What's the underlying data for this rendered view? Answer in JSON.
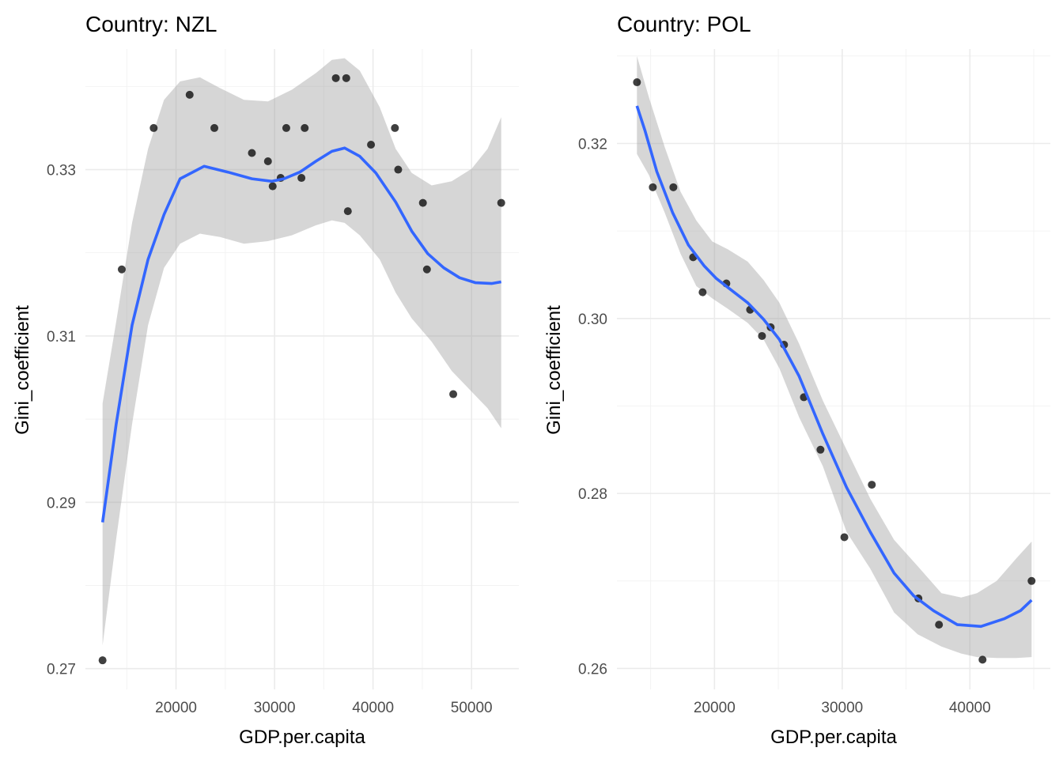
{
  "chart_data": [
    {
      "type": "scatter",
      "title": "Country: NZL",
      "xlabel": "GDP.per.capita",
      "ylabel": "Gini_coefficient",
      "xlim": [
        10800,
        54800
      ],
      "ylim": [
        0.2675,
        0.3445
      ],
      "x_ticks": [
        20000,
        30000,
        40000,
        50000
      ],
      "x_tick_labels": [
        "20000",
        "30000",
        "40000",
        "50000"
      ],
      "y_ticks": [
        0.27,
        0.29,
        0.31,
        0.33
      ],
      "y_tick_labels": [
        "0.27",
        "0.29",
        "0.31",
        "0.33"
      ],
      "grid": true,
      "points": [
        {
          "x": 12540,
          "y": 0.271
        },
        {
          "x": 14490,
          "y": 0.318
        },
        {
          "x": 17730,
          "y": 0.335
        },
        {
          "x": 21380,
          "y": 0.339
        },
        {
          "x": 23890,
          "y": 0.335
        },
        {
          "x": 27700,
          "y": 0.332
        },
        {
          "x": 29330,
          "y": 0.331
        },
        {
          "x": 29810,
          "y": 0.328
        },
        {
          "x": 30620,
          "y": 0.329
        },
        {
          "x": 31190,
          "y": 0.335
        },
        {
          "x": 32730,
          "y": 0.329
        },
        {
          "x": 33060,
          "y": 0.335
        },
        {
          "x": 36220,
          "y": 0.341
        },
        {
          "x": 37280,
          "y": 0.341
        },
        {
          "x": 37440,
          "y": 0.325
        },
        {
          "x": 39790,
          "y": 0.333
        },
        {
          "x": 42220,
          "y": 0.335
        },
        {
          "x": 42550,
          "y": 0.33
        },
        {
          "x": 45060,
          "y": 0.326
        },
        {
          "x": 45470,
          "y": 0.318
        },
        {
          "x": 48140,
          "y": 0.303
        },
        {
          "x": 53010,
          "y": 0.326
        }
      ],
      "smooth": {
        "x": [
          12540,
          13920,
          15540,
          17160,
          18780,
          20410,
          22840,
          25270,
          27700,
          29730,
          30950,
          32570,
          34190,
          35820,
          37110,
          38650,
          40280,
          42300,
          43930,
          45550,
          47170,
          48790,
          50410,
          52030,
          53010
        ],
        "y": [
          0.2876,
          0.2994,
          0.3113,
          0.3192,
          0.3246,
          0.3289,
          0.3304,
          0.3297,
          0.3289,
          0.3286,
          0.3289,
          0.3297,
          0.331,
          0.3322,
          0.3326,
          0.3316,
          0.3296,
          0.3261,
          0.3226,
          0.3199,
          0.3182,
          0.317,
          0.3164,
          0.3163,
          0.3165
        ]
      },
      "ribbon": {
        "x": [
          12540,
          13920,
          15540,
          17160,
          18780,
          20410,
          22430,
          24460,
          26890,
          29330,
          31760,
          34190,
          35820,
          37110,
          38650,
          40680,
          42300,
          43930,
          45950,
          47980,
          50010,
          51630,
          53010
        ],
        "upper": [
          0.3019,
          0.3117,
          0.3236,
          0.3325,
          0.3384,
          0.3406,
          0.3411,
          0.3398,
          0.3384,
          0.3382,
          0.3396,
          0.3416,
          0.3432,
          0.3434,
          0.3419,
          0.3375,
          0.3325,
          0.3296,
          0.3281,
          0.3286,
          0.3301,
          0.3325,
          0.3363
        ],
        "lower": [
          0.2728,
          0.2856,
          0.2994,
          0.3113,
          0.3182,
          0.3211,
          0.3223,
          0.3219,
          0.3211,
          0.3214,
          0.3221,
          0.3233,
          0.3239,
          0.3236,
          0.3221,
          0.3192,
          0.3152,
          0.3121,
          0.3093,
          0.3058,
          0.3033,
          0.3013,
          0.2989
        ]
      }
    },
    {
      "type": "scatter",
      "title": "Country: POL",
      "xlabel": "GDP.per.capita",
      "ylabel": "Gini_coefficient",
      "xlim": [
        12360,
        46300
      ],
      "ylim": [
        0.2576,
        0.3308
      ],
      "x_ticks": [
        20000,
        30000,
        40000
      ],
      "x_tick_labels": [
        "20000",
        "30000",
        "40000"
      ],
      "y_ticks": [
        0.26,
        0.28,
        0.3,
        0.32
      ],
      "y_tick_labels": [
        "0.26",
        "0.28",
        "0.30",
        "0.32"
      ],
      "grid": true,
      "points": [
        {
          "x": 13930,
          "y": 0.327
        },
        {
          "x": 15170,
          "y": 0.315
        },
        {
          "x": 16780,
          "y": 0.315
        },
        {
          "x": 18330,
          "y": 0.307
        },
        {
          "x": 19070,
          "y": 0.303
        },
        {
          "x": 20930,
          "y": 0.304
        },
        {
          "x": 22790,
          "y": 0.301
        },
        {
          "x": 23720,
          "y": 0.298
        },
        {
          "x": 24400,
          "y": 0.299
        },
        {
          "x": 25450,
          "y": 0.297
        },
        {
          "x": 27000,
          "y": 0.291
        },
        {
          "x": 28300,
          "y": 0.285
        },
        {
          "x": 30170,
          "y": 0.275
        },
        {
          "x": 32320,
          "y": 0.281
        },
        {
          "x": 35970,
          "y": 0.268
        },
        {
          "x": 37580,
          "y": 0.265
        },
        {
          "x": 40990,
          "y": 0.261
        },
        {
          "x": 44830,
          "y": 0.27
        }
      ],
      "smooth": {
        "x": [
          13930,
          14550,
          15480,
          16720,
          17960,
          19200,
          20120,
          21360,
          22600,
          23840,
          25080,
          26630,
          28490,
          30340,
          32200,
          34060,
          35600,
          37150,
          39010,
          40870,
          42720,
          43960,
          44830
        ],
        "y": [
          0.3243,
          0.3215,
          0.3168,
          0.3121,
          0.3084,
          0.306,
          0.3046,
          0.3032,
          0.3018,
          0.2999,
          0.2976,
          0.2934,
          0.2868,
          0.2807,
          0.2756,
          0.2709,
          0.2683,
          0.2666,
          0.265,
          0.2648,
          0.2657,
          0.2666,
          0.2678
        ]
      },
      "ribbon": {
        "x": [
          13930,
          14860,
          16100,
          17340,
          18580,
          19820,
          21050,
          22600,
          23840,
          25080,
          26630,
          28490,
          30340,
          32200,
          34060,
          35910,
          37770,
          39320,
          40560,
          42100,
          43650,
          44830
        ],
        "upper": [
          0.33,
          0.3253,
          0.3196,
          0.3145,
          0.3112,
          0.3088,
          0.3079,
          0.3065,
          0.3044,
          0.3018,
          0.2971,
          0.2906,
          0.285,
          0.2794,
          0.2747,
          0.2717,
          0.2686,
          0.2681,
          0.2686,
          0.27,
          0.2726,
          0.2745
        ],
        "lower": [
          0.3188,
          0.3164,
          0.3121,
          0.3074,
          0.3037,
          0.3023,
          0.3011,
          0.2995,
          0.2976,
          0.2943,
          0.2887,
          0.2831,
          0.2756,
          0.2714,
          0.2664,
          0.2639,
          0.2625,
          0.2617,
          0.2613,
          0.2612,
          0.2612,
          0.2613
        ]
      }
    }
  ]
}
